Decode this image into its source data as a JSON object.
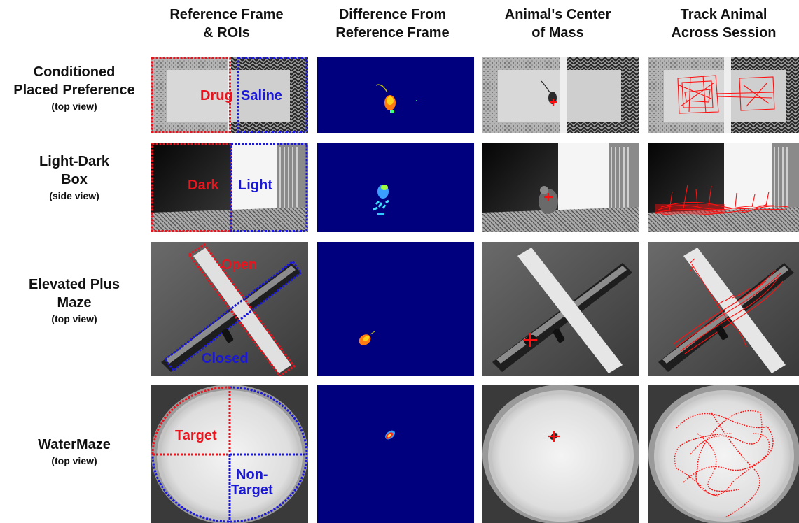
{
  "columns": [
    "Reference Frame\n& ROIs",
    "Difference From\nReference Frame",
    "Animal's Center\nof Mass",
    "Track Animal\nAcross Session"
  ],
  "rows": [
    {
      "title": "Conditioned\nPlaced Preference",
      "view": "(top view)",
      "roi_labels": [
        "Drug",
        "Saline"
      ]
    },
    {
      "title": "Light-Dark\nBox",
      "view": "(side view)",
      "roi_labels": [
        "Dark",
        "Light"
      ]
    },
    {
      "title": "Elevated Plus\nMaze",
      "view": "(top view)",
      "roi_labels": [
        "Open",
        "Closed"
      ]
    },
    {
      "title": "WaterMaze",
      "view": "(top view)",
      "roi_labels": [
        "Target",
        "Non-\nTarget"
      ]
    }
  ],
  "colors": {
    "roi_a": "#e8141e",
    "roi_b": "#1a18d6",
    "diff_bg": "#00007f",
    "track": "#ff1010"
  }
}
